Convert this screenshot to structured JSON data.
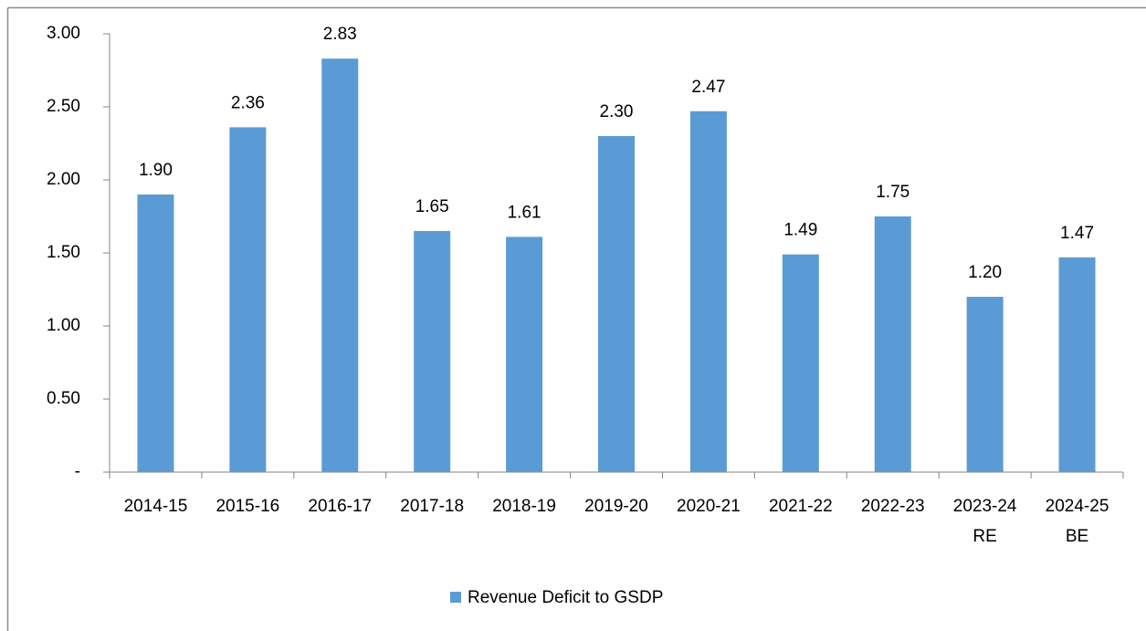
{
  "chart_data": {
    "type": "bar",
    "categories": [
      "2014-15",
      "2015-16",
      "2016-17",
      "2017-18",
      "2018-19",
      "2019-20",
      "2020-21",
      "2021-22",
      "2022-23",
      "2023-24\nRE",
      "2024-25\nBE"
    ],
    "series": [
      {
        "name": "Revenue Deficit to GSDP",
        "color": "#5b9bd5",
        "values": [
          1.9,
          2.36,
          2.83,
          1.65,
          1.61,
          2.3,
          2.47,
          1.49,
          1.75,
          1.2,
          1.47
        ],
        "value_labels": [
          "1.90",
          "2.36",
          "2.83",
          "1.65",
          "1.61",
          "2.30",
          "2.47",
          "1.49",
          "1.75",
          "1.20",
          "1.47"
        ]
      }
    ],
    "ylim": [
      0,
      3
    ],
    "yticks": [
      {
        "value": 0,
        "label": "-"
      },
      {
        "value": 0.5,
        "label": "0.50"
      },
      {
        "value": 1,
        "label": "1.00"
      },
      {
        "value": 1.5,
        "label": "1.50"
      },
      {
        "value": 2,
        "label": "2.00"
      },
      {
        "value": 2.5,
        "label": "2.50"
      },
      {
        "value": 3,
        "label": "3.00"
      }
    ],
    "grid": false,
    "legend": "bottom"
  }
}
